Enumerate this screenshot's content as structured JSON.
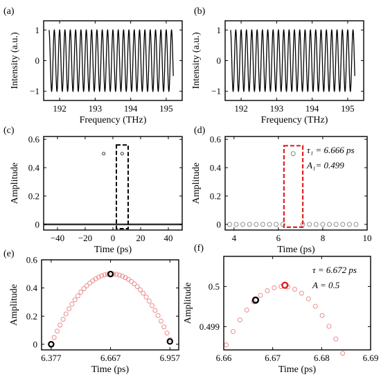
{
  "figure": {
    "panels": [
      "(a)",
      "(b)",
      "(c)",
      "(d)",
      "(e)",
      "(f)"
    ]
  },
  "colors": {
    "axis": "#000000",
    "trace": "#000000",
    "highlight": "#e02020",
    "marker_light": "#e88080",
    "marker_gray": "#808080"
  },
  "chart_data": [
    {
      "panel": "(a)",
      "type": "line",
      "xlabel": "Frequency (THz)",
      "ylabel": "Intensity (a.u.)",
      "xlim": [
        191.55,
        195.45
      ],
      "ylim": [
        -1.3,
        1.3
      ],
      "xticks": [
        192,
        193,
        194,
        195
      ],
      "yticks": [
        -1,
        0,
        1
      ],
      "ytick_labels": [
        "−1",
        "0",
        "1"
      ],
      "signal": {
        "function": "cos",
        "x_start": 191.7,
        "x_end": 195.2,
        "period_thz": 0.15,
        "amplitude": 1
      }
    },
    {
      "panel": "(b)",
      "type": "line",
      "xlabel": "Frequency (THz)",
      "ylabel": "Intensity (a.u.)",
      "xlim": [
        191.55,
        195.45
      ],
      "ylim": [
        -1.3,
        1.3
      ],
      "xticks": [
        192,
        193,
        194,
        195
      ],
      "yticks": [
        -1,
        0,
        1
      ],
      "ytick_labels": [
        "−1",
        "0",
        "1"
      ],
      "signal": {
        "function": "cos",
        "x_start": 191.7,
        "x_end": 195.2,
        "period_thz": 0.15,
        "amplitude": 1
      }
    },
    {
      "panel": "(c)",
      "type": "scatter",
      "xlabel": "Time (ps)",
      "ylabel": "Amplitude",
      "xlim": [
        -50,
        50
      ],
      "ylim": [
        -0.04,
        0.62
      ],
      "xticks": [
        -40,
        -20,
        0,
        20,
        40
      ],
      "yticks": [
        0,
        0.2,
        0.4,
        0.6
      ],
      "xtick_labels": [
        "−40",
        "−20",
        "0",
        "20",
        "40"
      ],
      "ytick_labels": [
        "0",
        "0.2",
        "0.4",
        "0.6"
      ],
      "baseline": {
        "y": 0,
        "x_start": -50,
        "x_end": 50
      },
      "peaks": [
        {
          "x": -6.67,
          "y": 0.499
        },
        {
          "x": 6.67,
          "y": 0.499
        }
      ],
      "highlight_box": {
        "x0": 2.5,
        "x1": 11,
        "y0": -0.03,
        "y1": 0.56
      }
    },
    {
      "panel": "(d)",
      "type": "scatter",
      "xlabel": "Time (ps)",
      "ylabel": "Amplitude",
      "xlim": [
        3.6,
        10
      ],
      "ylim": [
        -0.04,
        0.62
      ],
      "xticks": [
        4,
        6,
        8,
        10
      ],
      "yticks": [
        0,
        0.2,
        0.4,
        0.6
      ],
      "ytick_labels": [
        "0",
        "0.2",
        "0.4",
        "0.6"
      ],
      "points": [
        {
          "x": 3.8,
          "y": 0
        },
        {
          "x": 4.1,
          "y": 0
        },
        {
          "x": 4.4,
          "y": 0
        },
        {
          "x": 4.7,
          "y": 0
        },
        {
          "x": 5.0,
          "y": 0
        },
        {
          "x": 5.3,
          "y": 0
        },
        {
          "x": 5.6,
          "y": 0
        },
        {
          "x": 5.9,
          "y": 0
        },
        {
          "x": 6.2,
          "y": 0
        },
        {
          "x": 6.666,
          "y": 0.499
        },
        {
          "x": 7.1,
          "y": 0
        },
        {
          "x": 7.4,
          "y": 0
        },
        {
          "x": 7.7,
          "y": 0
        },
        {
          "x": 8.0,
          "y": 0
        },
        {
          "x": 8.3,
          "y": 0
        },
        {
          "x": 8.6,
          "y": 0
        },
        {
          "x": 8.9,
          "y": 0
        },
        {
          "x": 9.2,
          "y": 0
        },
        {
          "x": 9.5,
          "y": 0
        }
      ],
      "highlight_box": {
        "x0": 6.25,
        "x1": 7.1,
        "y0": -0.02,
        "y1": 0.555
      },
      "annotation": {
        "tau": "τ₁ = 6.666 ps",
        "amp": "A₁= 0.499"
      }
    },
    {
      "panel": "(e)",
      "type": "scatter",
      "xlabel": "Time (ps)",
      "ylabel": "Amplitude",
      "xlim": [
        6.33,
        7.0
      ],
      "ylim": [
        -0.04,
        0.6
      ],
      "xticks": [
        6.377,
        6.667,
        6.957
      ],
      "yticks": [
        0,
        0.2,
        0.4,
        0.6
      ],
      "xtick_labels": [
        "6.377",
        "6.667",
        "6.957"
      ],
      "ytick_labels": [
        "0",
        "0.2",
        "0.4",
        "0.6"
      ],
      "curve": {
        "center": 6.672,
        "half_width": 0.295,
        "amplitude": 0.5,
        "x_start": 6.377,
        "x_end": 6.957,
        "step": 0.0145
      },
      "bold_points": [
        {
          "x": 6.377,
          "y": 0.0
        },
        {
          "x": 6.667,
          "y": 0.499
        },
        {
          "x": 6.957,
          "y": 0.02
        }
      ]
    },
    {
      "panel": "(f)",
      "type": "scatter",
      "xlabel": "Time (ps)",
      "ylabel": "Amplitude",
      "xlim": [
        6.66,
        6.69
      ],
      "ylim": [
        0.49842,
        0.50075
      ],
      "xticks": [
        6.66,
        6.67,
        6.68,
        6.69
      ],
      "yticks": [
        0.499,
        0.5
      ],
      "xtick_labels": [
        "6.66",
        "6.67",
        "6.68",
        "6.69"
      ],
      "ytick_labels": [
        "0.499",
        "0.5"
      ],
      "curve": {
        "center": 6.672,
        "peak": 0.5,
        "curvature": 11.0,
        "x_start": 6.6605,
        "x_end": 6.6855,
        "step": 0.0014
      },
      "bold_points": [
        {
          "x": 6.6665,
          "y": 0.49966,
          "color": "black"
        },
        {
          "x": 6.6725,
          "y": 0.50003,
          "color": "red"
        }
      ],
      "annotation": {
        "tau": "τ = 6.672 ps",
        "amp": "A = 0.5"
      }
    }
  ]
}
